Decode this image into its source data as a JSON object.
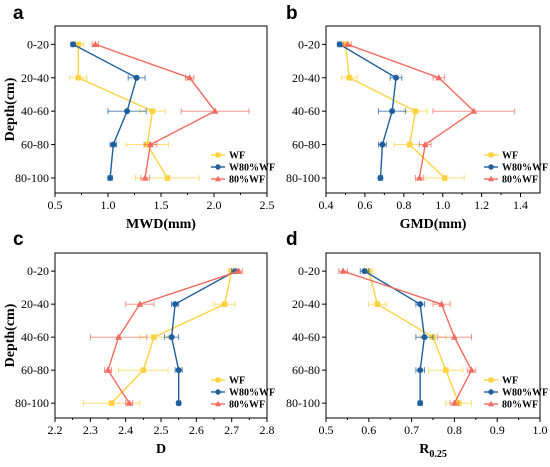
{
  "colors": {
    "WF": "#FFD23F",
    "W80%WF": "#1F5F9E",
    "80%WF": "#F26B5E"
  },
  "chart_data": [
    {
      "type": "line",
      "panel": "a",
      "xlabel": "MWD(mm)",
      "ylabel": "Depth(cm)",
      "categories": [
        "0-20",
        "20-40",
        "40-60",
        "60-80",
        "80-100"
      ],
      "xlim": [
        0.5,
        2.5
      ],
      "xticks": [
        "0.5",
        "1.0",
        "1.5",
        "2.0",
        "2.5"
      ],
      "legend_position": "bottom-right",
      "series": [
        {
          "name": "WF",
          "marker": "square",
          "values": [
            0.72,
            0.72,
            1.42,
            1.37,
            1.56
          ],
          "errors": [
            0.05,
            0.08,
            0.12,
            0.2,
            0.3
          ]
        },
        {
          "name": "W80%WF",
          "marker": "circle",
          "values": [
            0.67,
            1.27,
            1.18,
            1.05,
            1.02
          ],
          "errors": [
            0.02,
            0.08,
            0.18,
            0.03,
            0.02
          ]
        },
        {
          "name": "80%WF",
          "marker": "triangle",
          "values": [
            0.88,
            1.77,
            2.01,
            1.4,
            1.35
          ],
          "errors": [
            0.03,
            0.04,
            0.32,
            0.06,
            0.04
          ]
        }
      ]
    },
    {
      "type": "line",
      "panel": "b",
      "xlabel": "GMD(mm)",
      "ylabel": "",
      "categories": [
        "0-20",
        "20-40",
        "40-60",
        "60-80",
        "80-100"
      ],
      "xlim": [
        0.4,
        1.5
      ],
      "xticks": [
        "0.4",
        "0.6",
        "0.8",
        "1.0",
        "1.2",
        "1.4"
      ],
      "legend_position": "bottom-right",
      "series": [
        {
          "name": "WF",
          "marker": "square",
          "values": [
            0.5,
            0.52,
            0.86,
            0.83,
            1.01
          ],
          "errors": [
            0.02,
            0.04,
            0.06,
            0.08,
            0.1
          ]
        },
        {
          "name": "W80%WF",
          "marker": "circle",
          "values": [
            0.47,
            0.76,
            0.74,
            0.69,
            0.68
          ],
          "errors": [
            0.01,
            0.03,
            0.07,
            0.02,
            0.01
          ]
        },
        {
          "name": "80%WF",
          "marker": "triangle",
          "values": [
            0.51,
            0.98,
            1.16,
            0.91,
            0.88
          ],
          "errors": [
            0.02,
            0.03,
            0.21,
            0.03,
            0.02
          ]
        }
      ]
    },
    {
      "type": "line",
      "panel": "c",
      "xlabel": "D",
      "ylabel": "Depth(cm)",
      "categories": [
        "0-20",
        "20-40",
        "40-60",
        "60-80",
        "80-100"
      ],
      "xlim": [
        2.2,
        2.8
      ],
      "xticks": [
        "2.2",
        "2.3",
        "2.4",
        "2.5",
        "2.6",
        "2.7",
        "2.8"
      ],
      "legend_position": "bottom-right",
      "series": [
        {
          "name": "WF",
          "marker": "square",
          "values": [
            2.7,
            2.68,
            2.48,
            2.45,
            2.36
          ],
          "errors": [
            0.01,
            0.03,
            0.04,
            0.07,
            0.08
          ]
        },
        {
          "name": "W80%WF",
          "marker": "circle",
          "values": [
            2.71,
            2.54,
            2.53,
            2.55,
            2.55
          ],
          "errors": [
            0.01,
            0.01,
            0.02,
            0.01,
            0.005
          ]
        },
        {
          "name": "80%WF",
          "marker": "triangle",
          "values": [
            2.72,
            2.44,
            2.38,
            2.35,
            2.41
          ],
          "errors": [
            0.01,
            0.04,
            0.08,
            0.01,
            0.01
          ]
        }
      ]
    },
    {
      "type": "line",
      "panel": "d",
      "xlabel": "R0.25",
      "xlabel_main": "R",
      "xlabel_sub": "0.25",
      "ylabel": "",
      "categories": [
        "0-20",
        "20-40",
        "40-60",
        "60-80",
        "80-100"
      ],
      "xlim": [
        0.5,
        1.0
      ],
      "xticks": [
        "0.5",
        "0.6",
        "0.7",
        "0.8",
        "0.9",
        "1.0"
      ],
      "legend_position": "bottom-right",
      "series": [
        {
          "name": "WF",
          "marker": "square",
          "values": [
            0.6,
            0.62,
            0.75,
            0.78,
            0.81
          ],
          "errors": [
            0.01,
            0.02,
            0.03,
            0.04,
            0.03
          ]
        },
        {
          "name": "W80%WF",
          "marker": "circle",
          "values": [
            0.59,
            0.72,
            0.73,
            0.72,
            0.72
          ],
          "errors": [
            0.01,
            0.01,
            0.02,
            0.01,
            0.005
          ]
        },
        {
          "name": "80%WF",
          "marker": "triangle",
          "values": [
            0.54,
            0.77,
            0.8,
            0.84,
            0.8
          ],
          "errors": [
            0.01,
            0.02,
            0.04,
            0.01,
            0.01
          ]
        }
      ]
    }
  ]
}
